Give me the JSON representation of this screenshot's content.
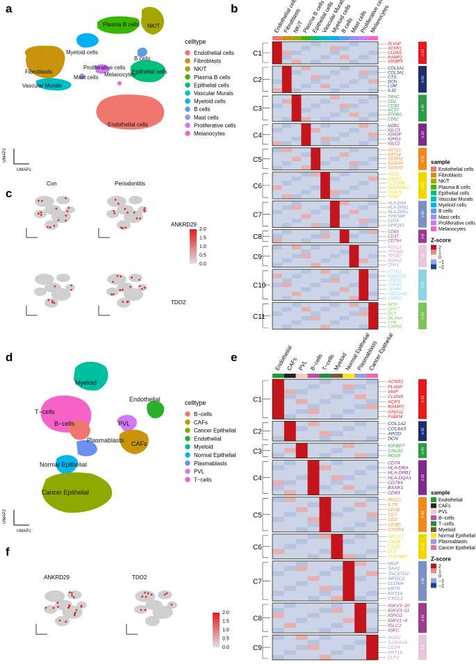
{
  "panel_a": {
    "label": "a",
    "legend_title": "celltype",
    "legend": [
      {
        "name": "Endothelial cells",
        "color": "#f0776d"
      },
      {
        "name": "Fibroblasts",
        "color": "#c9930c"
      },
      {
        "name": "NK/T",
        "color": "#a3a500"
      },
      {
        "name": "Plasma B cells",
        "color": "#39b600"
      },
      {
        "name": "Epithelial cells",
        "color": "#00bf7d"
      },
      {
        "name": "Vascular Murals",
        "color": "#00bfc4"
      },
      {
        "name": "Myeloid cells",
        "color": "#00b0f6"
      },
      {
        "name": "B cells",
        "color": "#5f9ce8"
      },
      {
        "name": "Mast cells",
        "color": "#9590ff"
      },
      {
        "name": "Proliferative cells",
        "color": "#d277f5"
      },
      {
        "name": "Melanocytes",
        "color": "#f066c9"
      }
    ],
    "cluster_labels": [
      "Plasma B cells",
      "NK/T",
      "Myeloid cells",
      "B cells",
      "Fibroblasts",
      "Proliferative cells",
      "Epithelial cells",
      "Vascular Murals",
      "Mast cells",
      "Melanocytes",
      "Endothelial cells"
    ],
    "axis_x": "UMAP1",
    "axis_y": "UMAP2"
  },
  "panel_c": {
    "label": "c",
    "titles": [
      "Con",
      "Periodontitis"
    ],
    "genes": [
      "ANKRD29",
      "TDO2"
    ],
    "scale_ticks": [
      "2.0",
      "1.5",
      "1.0",
      "0.5",
      "0.0"
    ],
    "axis_x": "UMAP1",
    "axis_y": "UMAP2"
  },
  "panel_b": {
    "label": "b",
    "columns": [
      "Endothelial cells",
      "Fibroblasts",
      "NK/T",
      "Plasma B cells",
      "Epithelial cells",
      "Vascular Murals",
      "Myeloid cells",
      "B cells",
      "Mast cells",
      "Proliferative cells",
      "Melanocytes"
    ],
    "column_colors": [
      "#f0776d",
      "#c9930c",
      "#a3a500",
      "#39b600",
      "#00bf7d",
      "#00bfc4",
      "#00b0f6",
      "#5f9ce8",
      "#9590ff",
      "#d277f5",
      "#f066c9"
    ],
    "clusters": [
      {
        "name": "C1",
        "n": "n:10",
        "color": "#e41a1c",
        "genes": [
          "PLVAP",
          "ACKR1",
          "CLDN5",
          "RAMP2",
          "IGFBP5"
        ]
      },
      {
        "name": "C2",
        "n": "n:10",
        "color": "#1f2d6b",
        "genes": [
          "COL1A1",
          "COL3A1",
          "CTS",
          "DCN",
          "LUM",
          "IL32"
        ]
      },
      {
        "name": "C3",
        "n": "n:10",
        "color": "#2e9b45",
        "genes": [
          "TRAC",
          "CD2",
          "CD3D",
          "HCST",
          "PTPRC",
          "CD52"
        ]
      },
      {
        "name": "C4",
        "n": "n:10",
        "color": "#7b2a8a",
        "genes": [
          "MZB1",
          "IGLC3",
          "IGHGP",
          "IGHG1",
          "IGLC2"
        ]
      },
      {
        "name": "C5",
        "n": "n:10",
        "color": "#f08a1d",
        "genes": [
          "KRT13",
          "KRT14",
          "S100A2",
          "S100A8",
          "S100A9"
        ]
      },
      {
        "name": "C6",
        "n": "n:10",
        "color": "#f2d600",
        "genes": [
          "RGS5",
          "CALD1",
          "C11orf96",
          "NDUFA4L2",
          "TAGLN",
          "TPM2"
        ]
      },
      {
        "name": "C7",
        "n": "n:10",
        "color": "#7b8fc4",
        "genes": [
          "HLA-DRA",
          "HLA-DPB1",
          "HLA-DPA1",
          "TYROBP",
          "CD74",
          "GPR183"
        ]
      },
      {
        "name": "C8",
        "n": "n:6",
        "color": "#9c3b8f",
        "genes": [
          "CD83",
          "CD37",
          "CD79A"
        ]
      },
      {
        "name": "C9",
        "n": "n:6",
        "color": "#e8c6df",
        "genes": [
          "RGS13",
          "TPSAB1",
          "TPSB2",
          "MS4A2",
          "CPA3"
        ]
      },
      {
        "name": "C10",
        "n": "n:10",
        "color": "#8ed4e3",
        "genes": [
          "PTTG1",
          "KIAA0101",
          "UBE2C",
          "TOP2A",
          "CENPF",
          "HIST1H4C",
          "STMN1"
        ]
      },
      {
        "name": "C11",
        "n": "n:10",
        "color": "#7cc35b",
        "genes": [
          "MITF",
          "QPCT",
          "DCT",
          "MLANA",
          "TYR",
          "CAPN3"
        ]
      }
    ],
    "legend_sample_title": "sample",
    "legend_zscore_title": "Z-score",
    "zscore_ticks": [
      "2",
      "1",
      "0",
      "−1",
      "−2"
    ]
  },
  "panel_d": {
    "label": "d",
    "legend_title": "celltype",
    "legend": [
      {
        "name": "B−cells",
        "color": "#f0776d"
      },
      {
        "name": "CAFs",
        "color": "#c9930c"
      },
      {
        "name": "Cancer Epithelial",
        "color": "#8fa800"
      },
      {
        "name": "Endothelial",
        "color": "#2bae2b"
      },
      {
        "name": "Myeloid",
        "color": "#00bfa0"
      },
      {
        "name": "Normal Epithelial",
        "color": "#00b6eb"
      },
      {
        "name": "Plasmablasts",
        "color": "#6b91f0"
      },
      {
        "name": "PVL",
        "color": "#d277f5"
      },
      {
        "name": "T−cells",
        "color": "#f662c8"
      }
    ],
    "cluster_labels": [
      "Myeloid",
      "Endothelial",
      "T−cells",
      "B−cells",
      "PVL",
      "Plasmablasts",
      "CAFs",
      "Normal Epithelial",
      "Cancer Epithelial"
    ],
    "axis_x": "UMAP1",
    "axis_y": "UMAP2"
  },
  "panel_f": {
    "label": "f",
    "genes": [
      "ANKRD29",
      "TDO2"
    ],
    "scale_ticks": [
      "2.0",
      "1.5",
      "1.0",
      "0.5",
      "0.0"
    ],
    "axis_x": "UMAP1",
    "axis_y": "UMAP2"
  },
  "panel_e": {
    "label": "e",
    "columns": [
      "Endothelial",
      "CAFs",
      "PVL",
      "B−cells",
      "T−cells",
      "Myeloid",
      "Normal Epithelial",
      "Plasmablasts",
      "Cancer Epithelial"
    ],
    "column_colors": [
      "#1a9e2e",
      "#222222",
      "#f6c9c9",
      "#c24d9f",
      "#1d8f3a",
      "#7a5a2f",
      "#ffe21a",
      "#9a9ce0",
      "#e66ea8"
    ],
    "clusters": [
      {
        "name": "C1",
        "n": "n:10",
        "color": "#e41a1c",
        "genes": [
          "ACKR1",
          "PLVAP",
          "VWF",
          "CLDN5",
          "AQP1",
          "RAMP2",
          "GNG11",
          "FABP4"
        ]
      },
      {
        "name": "C2",
        "n": "n:10",
        "color": "#1f2d6b",
        "genes": [
          "COL1A2",
          "COL6A3",
          "APOD",
          "DCN"
        ]
      },
      {
        "name": "C3",
        "n": "n:10",
        "color": "#2e9b45",
        "genes": [
          "IGFBP7",
          "CALD1",
          "RGS5"
        ]
      },
      {
        "name": "C4",
        "n": "n:10",
        "color": "#7b2a8a",
        "genes": [
          "CD74",
          "HLA-DRA",
          "HLA-DPB1",
          "HLA-DQA1",
          "CD79A",
          "BANK1",
          "CD83"
        ]
      },
      {
        "name": "C5",
        "n": "n:10",
        "color": "#f08a1d",
        "genes": [
          "RGCC",
          "IL7R",
          "CD3E",
          "CD7",
          "CD2",
          "CD3D",
          "CXCR4"
        ]
      },
      {
        "name": "C6",
        "n": "n:10",
        "color": "#f2d600",
        "genes": [
          "APOC1",
          "C1QB",
          "C1QC",
          "LYZ",
          "TYROBP"
        ]
      },
      {
        "name": "C7",
        "n": "n:10",
        "color": "#7b8fc4",
        "genes": [
          "MGP",
          "SAA1",
          "TACSTD2",
          "WFDC2",
          "CLDN4",
          "KRT5",
          "KRT14",
          "CXCL2"
        ]
      },
      {
        "name": "C8",
        "n": "n:10",
        "color": "#9c3b8f",
        "genes": [
          "IGKV3−20",
          "IGKV3−11",
          "IGHG1",
          "IGKV1−9",
          "IGLC2",
          "IGKC"
        ]
      },
      {
        "name": "C9",
        "n": "n:9",
        "color": "#e8c6df",
        "genes": [
          "AGR2",
          "S100A14",
          "CD24",
          "KRT18",
          "ELF3"
        ]
      }
    ],
    "legend_sample_title": "sample",
    "legend_zscore_title": "Z-score",
    "zscore_ticks": [
      "2",
      "1",
      "0",
      "−1",
      "−2"
    ]
  }
}
